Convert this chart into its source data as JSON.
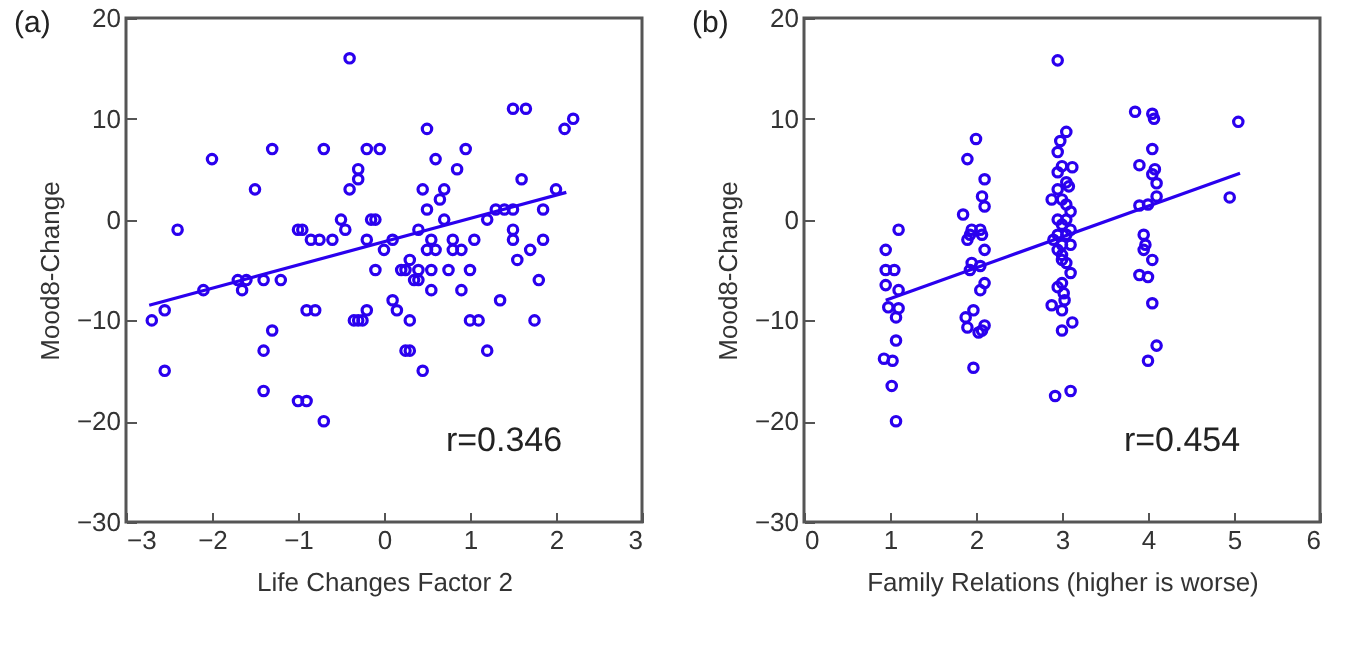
{
  "chart_data": [
    {
      "type": "scatter",
      "xlabel": "Life Changes Factor 2",
      "ylabel": "Mood8-Change",
      "xlim": [
        -3,
        3
      ],
      "xticks": [
        -3,
        -2,
        -1,
        0,
        1,
        2,
        3
      ],
      "ylim": [
        -30,
        20
      ],
      "yticks": [
        -30,
        -20,
        -10,
        0,
        10,
        20
      ],
      "grid": false,
      "annotations": [
        "(a)",
        "r=0.346"
      ],
      "series": [
        {
          "type": "scatter",
          "marker": "circle",
          "color": "#2a00ee",
          "x": [
            -2.7,
            -2.55,
            -2.55,
            -2.4,
            -2.1,
            -2,
            -1.7,
            -1.65,
            -1.6,
            -1.4,
            -1.4,
            -1.4,
            -1.5,
            -1.3,
            -1.2,
            -1.3,
            -1.0,
            -0.9,
            -0.8,
            -0.9,
            -0.7,
            -0.7,
            -1.0,
            -0.95,
            -0.85,
            -0.75,
            -0.6,
            -0.5,
            -0.45,
            -0.4,
            -0.4,
            -0.3,
            -0.3,
            -0.35,
            -0.3,
            -0.25,
            -0.2,
            -0.2,
            -0.15,
            -0.1,
            -0.05,
            -0.2,
            -0.1,
            0,
            0.1,
            0.1,
            0.15,
            0.2,
            0.25,
            0.3,
            0.25,
            0.3,
            0.3,
            0.35,
            0.4,
            0.45,
            0.4,
            0.4,
            0.45,
            0.5,
            0.5,
            0.5,
            0.55,
            0.55,
            0.55,
            0.6,
            0.6,
            0.65,
            0.7,
            0.7,
            0.75,
            0.8,
            0.8,
            0.85,
            0.9,
            0.9,
            0.95,
            1,
            1.05,
            1.1,
            1.2,
            1.3,
            1.35,
            1.4,
            1.5,
            1.5,
            1.5,
            1.5,
            1.55,
            1.6,
            1.65,
            1.7,
            1.75,
            1.8,
            1.85,
            1.85,
            2.0,
            2.1,
            2.2,
            1.0,
            1.2
          ],
          "values": [
            -10,
            -9,
            -15,
            -1,
            -7,
            6,
            -6,
            -7,
            -6,
            -6,
            -13,
            -17,
            3,
            -11,
            -6,
            7,
            -18,
            -18,
            -9,
            -9,
            -20,
            7,
            -1,
            -1,
            -2,
            -2,
            -2,
            0,
            -1,
            16,
            3,
            4,
            5,
            -10,
            -10,
            -10,
            -9,
            7,
            0,
            0,
            7,
            -2,
            -5,
            -3,
            -2,
            -8,
            -9,
            -5,
            -5,
            -4,
            -13,
            -10,
            -13,
            -6,
            -6,
            3,
            -1,
            -5,
            -15,
            9,
            1,
            -3,
            -2,
            -5,
            -7,
            6,
            -3,
            2,
            3,
            0,
            -5,
            -3,
            -2,
            5,
            -3,
            -7,
            7,
            -5,
            -2,
            -10,
            0,
            1,
            -8,
            1,
            -1,
            1,
            -2,
            11,
            -4,
            4,
            11,
            -3,
            -10,
            -6,
            -2,
            1,
            3,
            9,
            10,
            -10,
            -13
          ]
        },
        {
          "type": "line",
          "color": "#2a00ee",
          "x": [
            -2.73,
            2.12
          ],
          "values": [
            -8.5,
            2.7
          ]
        }
      ]
    },
    {
      "type": "scatter",
      "xlabel": "Family Relations (higher is worse)",
      "ylabel": "Mood8-Change",
      "xlim": [
        0,
        6
      ],
      "xticks": [
        0,
        1,
        2,
        3,
        4,
        5,
        6
      ],
      "ylim": [
        -30,
        20
      ],
      "yticks": [
        -30,
        -20,
        -10,
        0,
        10,
        20
      ],
      "grid": false,
      "annotations": [
        "(b)",
        "r=0.454"
      ],
      "series": [
        {
          "type": "scatter",
          "marker": "circle",
          "color": "#2a00ee",
          "x": [
            0.95,
            0.95,
            1.05,
            1.1,
            0.95,
            1.1,
            0.98,
            1.1,
            1.07,
            1.07,
            0.93,
            1.03,
            1.02,
            1.07,
            1.9,
            2.0,
            1.85,
            1.95,
            2.05,
            1.93,
            1.9,
            2.07,
            2.1,
            2.07,
            2.1,
            2.1,
            1.95,
            2.05,
            1.93,
            2.1,
            2.05,
            1.97,
            1.88,
            1.9,
            2.07,
            2.1,
            2.03,
            1.97,
            2.95,
            3.05,
            2.98,
            2.95,
            3.0,
            2.95,
            3.12,
            3.08,
            2.95,
            3.05,
            2.88,
            3.0,
            3.05,
            3.1,
            2.95,
            3.05,
            3.0,
            3.1,
            2.95,
            3.05,
            2.9,
            3.0,
            3.1,
            2.95,
            3.0,
            3.0,
            3.05,
            3.1,
            2.95,
            3.0,
            3.02,
            3.03,
            2.88,
            3.0,
            3.0,
            3.12,
            2.92,
            3.1,
            3.85,
            4.05,
            4.07,
            4.05,
            3.9,
            4.08,
            4.05,
            4.1,
            4.1,
            3.9,
            4.0,
            3.95,
            3.97,
            3.95,
            4.05,
            3.9,
            4.0,
            4.05,
            4.1,
            4.0,
            5.05,
            4.95
          ],
          "values": [
            -3,
            -5,
            -5,
            -1,
            -6.5,
            -7,
            -8.7,
            -8.8,
            -9.7,
            -12,
            -13.8,
            -14,
            -16.5,
            -20,
            6,
            8,
            0.5,
            -1,
            -1,
            -1.5,
            -2,
            -1.5,
            4,
            2.3,
            1.3,
            -3,
            -4.3,
            -4.6,
            -5,
            -6.3,
            -7,
            -9,
            -9.7,
            -10.7,
            -11,
            -10.5,
            -11.2,
            -14.7,
            15.8,
            8.7,
            7.8,
            6.7,
            5.3,
            4.7,
            5.2,
            3.3,
            3,
            3.7,
            2,
            2,
            1.5,
            0.8,
            0,
            0,
            -0.5,
            -1,
            -1.5,
            -1.5,
            -2,
            -2.5,
            -2.5,
            -3,
            -3.5,
            -4,
            -4.3,
            -5.3,
            -6.7,
            -6.3,
            -7.3,
            -8,
            -8.5,
            -9,
            -11,
            -10.2,
            -17.5,
            -17,
            10.7,
            10.5,
            10,
            7,
            5.4,
            5,
            4.5,
            3.6,
            2.3,
            1.4,
            1.5,
            -1.5,
            -2.5,
            -3,
            -4,
            -5.5,
            -5.7,
            -8.3,
            -12.5,
            -14,
            9.7,
            2.2
          ]
        },
        {
          "type": "line",
          "color": "#2a00ee",
          "x": [
            0.95,
            5.07
          ],
          "values": [
            -8.0,
            4.6
          ]
        }
      ]
    }
  ]
}
